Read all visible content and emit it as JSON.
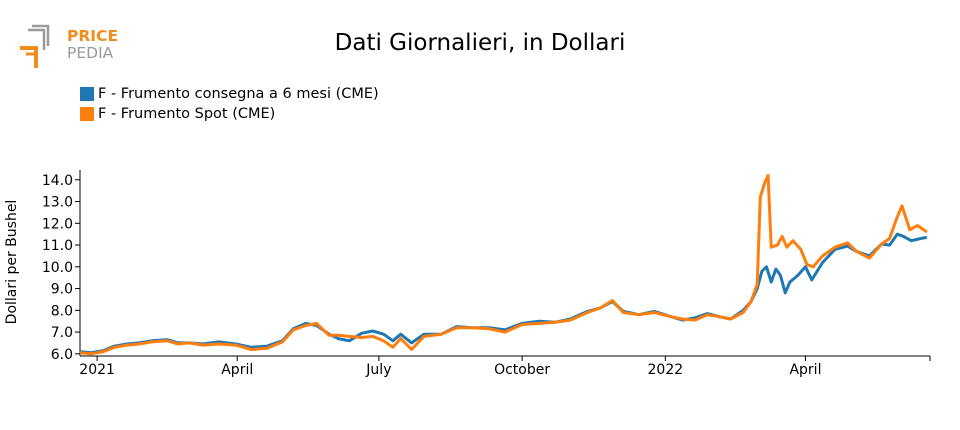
{
  "logo": {
    "word1": "PRICE",
    "word2": "PEDIA",
    "colors": {
      "orange": "#F28C1E",
      "gray": "#9A9A9A"
    }
  },
  "chart_data": {
    "type": "line",
    "title": "Dati Giornalieri, in Dollari",
    "ylabel": "Dollari per Bushel",
    "xlabel": "",
    "ylim": [
      5.9,
      14.45
    ],
    "yticks": [
      "6.0",
      "7.0",
      "8.0",
      "9.0",
      "10.0",
      "11.0",
      "12.0",
      "13.0",
      "14.0"
    ],
    "xlim": [
      "2020-12-21",
      "2022-06-20"
    ],
    "xticks": [
      {
        "date": "2021-01-01",
        "label": "2021"
      },
      {
        "date": "2021-04-01",
        "label": "April"
      },
      {
        "date": "2021-07-01",
        "label": "July"
      },
      {
        "date": "2021-10-01",
        "label": "October"
      },
      {
        "date": "2022-01-01",
        "label": "2022"
      },
      {
        "date": "2022-04-01",
        "label": "April"
      }
    ],
    "legend_position": "top-left",
    "series": [
      {
        "name": "F - Frumento consegna a 6 mesi (CME)",
        "color": "#1F77B4",
        "points": [
          [
            "2020-12-21",
            6.1
          ],
          [
            "2020-12-28",
            6.05
          ],
          [
            "2021-01-05",
            6.15
          ],
          [
            "2021-01-12",
            6.35
          ],
          [
            "2021-01-20",
            6.45
          ],
          [
            "2021-01-28",
            6.5
          ],
          [
            "2021-02-05",
            6.6
          ],
          [
            "2021-02-15",
            6.65
          ],
          [
            "2021-02-22",
            6.5
          ],
          [
            "2021-03-01",
            6.5
          ],
          [
            "2021-03-10",
            6.45
          ],
          [
            "2021-03-20",
            6.55
          ],
          [
            "2021-03-31",
            6.45
          ],
          [
            "2021-04-10",
            6.3
          ],
          [
            "2021-04-20",
            6.35
          ],
          [
            "2021-04-30",
            6.6
          ],
          [
            "2021-05-07",
            7.15
          ],
          [
            "2021-05-15",
            7.4
          ],
          [
            "2021-05-22",
            7.3
          ],
          [
            "2021-05-30",
            6.9
          ],
          [
            "2021-06-05",
            6.7
          ],
          [
            "2021-06-12",
            6.6
          ],
          [
            "2021-06-20",
            6.95
          ],
          [
            "2021-06-27",
            7.05
          ],
          [
            "2021-07-04",
            6.9
          ],
          [
            "2021-07-10",
            6.6
          ],
          [
            "2021-07-15",
            6.9
          ],
          [
            "2021-07-22",
            6.5
          ],
          [
            "2021-07-30",
            6.9
          ],
          [
            "2021-08-10",
            6.9
          ],
          [
            "2021-08-20",
            7.25
          ],
          [
            "2021-08-30",
            7.2
          ],
          [
            "2021-09-10",
            7.2
          ],
          [
            "2021-09-20",
            7.1
          ],
          [
            "2021-10-01",
            7.4
          ],
          [
            "2021-10-12",
            7.5
          ],
          [
            "2021-10-22",
            7.45
          ],
          [
            "2021-11-01",
            7.6
          ],
          [
            "2021-11-12",
            7.95
          ],
          [
            "2021-11-20",
            8.1
          ],
          [
            "2021-11-28",
            8.4
          ],
          [
            "2021-12-05",
            7.95
          ],
          [
            "2021-12-15",
            7.8
          ],
          [
            "2021-12-25",
            7.95
          ],
          [
            "2022-01-05",
            7.7
          ],
          [
            "2022-01-12",
            7.55
          ],
          [
            "2022-01-20",
            7.65
          ],
          [
            "2022-01-28",
            7.85
          ],
          [
            "2022-02-05",
            7.7
          ],
          [
            "2022-02-12",
            7.6
          ],
          [
            "2022-02-20",
            8.0
          ],
          [
            "2022-02-25",
            8.4
          ],
          [
            "2022-03-01",
            9.0
          ],
          [
            "2022-03-04",
            9.8
          ],
          [
            "2022-03-07",
            10.0
          ],
          [
            "2022-03-10",
            9.3
          ],
          [
            "2022-03-13",
            9.9
          ],
          [
            "2022-03-16",
            9.6
          ],
          [
            "2022-03-19",
            8.8
          ],
          [
            "2022-03-22",
            9.3
          ],
          [
            "2022-03-27",
            9.6
          ],
          [
            "2022-04-01",
            10.0
          ],
          [
            "2022-04-05",
            9.4
          ],
          [
            "2022-04-12",
            10.2
          ],
          [
            "2022-04-20",
            10.8
          ],
          [
            "2022-04-28",
            10.95
          ],
          [
            "2022-05-04",
            10.7
          ],
          [
            "2022-05-12",
            10.5
          ],
          [
            "2022-05-20",
            11.05
          ],
          [
            "2022-05-25",
            11.0
          ],
          [
            "2022-05-30",
            11.5
          ],
          [
            "2022-06-03",
            11.4
          ],
          [
            "2022-06-08",
            11.2
          ],
          [
            "2022-06-14",
            11.3
          ],
          [
            "2022-06-18",
            11.35
          ]
        ]
      },
      {
        "name": "F - Frumento Spot (CME)",
        "color": "#FF7F0E",
        "points": [
          [
            "2020-12-21",
            6.05
          ],
          [
            "2020-12-28",
            6.0
          ],
          [
            "2021-01-05",
            6.1
          ],
          [
            "2021-01-12",
            6.3
          ],
          [
            "2021-01-20",
            6.4
          ],
          [
            "2021-01-28",
            6.45
          ],
          [
            "2021-02-05",
            6.55
          ],
          [
            "2021-02-15",
            6.6
          ],
          [
            "2021-02-22",
            6.45
          ],
          [
            "2021-03-01",
            6.5
          ],
          [
            "2021-03-10",
            6.4
          ],
          [
            "2021-03-20",
            6.45
          ],
          [
            "2021-03-31",
            6.4
          ],
          [
            "2021-04-10",
            6.2
          ],
          [
            "2021-04-20",
            6.25
          ],
          [
            "2021-04-30",
            6.55
          ],
          [
            "2021-05-07",
            7.1
          ],
          [
            "2021-05-15",
            7.3
          ],
          [
            "2021-05-22",
            7.4
          ],
          [
            "2021-05-30",
            6.85
          ],
          [
            "2021-06-05",
            6.85
          ],
          [
            "2021-06-12",
            6.8
          ],
          [
            "2021-06-20",
            6.75
          ],
          [
            "2021-06-27",
            6.8
          ],
          [
            "2021-07-04",
            6.6
          ],
          [
            "2021-07-10",
            6.3
          ],
          [
            "2021-07-15",
            6.7
          ],
          [
            "2021-07-22",
            6.2
          ],
          [
            "2021-07-30",
            6.8
          ],
          [
            "2021-08-10",
            6.9
          ],
          [
            "2021-08-20",
            7.2
          ],
          [
            "2021-08-30",
            7.2
          ],
          [
            "2021-09-10",
            7.15
          ],
          [
            "2021-09-20",
            7.0
          ],
          [
            "2021-10-01",
            7.35
          ],
          [
            "2021-10-12",
            7.4
          ],
          [
            "2021-10-22",
            7.45
          ],
          [
            "2021-11-01",
            7.55
          ],
          [
            "2021-11-12",
            7.9
          ],
          [
            "2021-11-20",
            8.1
          ],
          [
            "2021-11-28",
            8.45
          ],
          [
            "2021-12-05",
            7.9
          ],
          [
            "2021-12-15",
            7.8
          ],
          [
            "2021-12-25",
            7.9
          ],
          [
            "2022-01-05",
            7.7
          ],
          [
            "2022-01-12",
            7.6
          ],
          [
            "2022-01-20",
            7.55
          ],
          [
            "2022-01-28",
            7.8
          ],
          [
            "2022-02-05",
            7.7
          ],
          [
            "2022-02-12",
            7.6
          ],
          [
            "2022-02-20",
            7.9
          ],
          [
            "2022-02-25",
            8.4
          ],
          [
            "2022-03-01",
            9.2
          ],
          [
            "2022-03-03",
            13.2
          ],
          [
            "2022-03-06",
            13.9
          ],
          [
            "2022-03-08",
            14.2
          ],
          [
            "2022-03-10",
            10.9
          ],
          [
            "2022-03-14",
            11.0
          ],
          [
            "2022-03-17",
            11.4
          ],
          [
            "2022-03-20",
            10.9
          ],
          [
            "2022-03-24",
            11.2
          ],
          [
            "2022-03-29",
            10.8
          ],
          [
            "2022-04-02",
            10.1
          ],
          [
            "2022-04-06",
            10.0
          ],
          [
            "2022-04-12",
            10.5
          ],
          [
            "2022-04-20",
            10.9
          ],
          [
            "2022-04-28",
            11.1
          ],
          [
            "2022-05-04",
            10.7
          ],
          [
            "2022-05-12",
            10.4
          ],
          [
            "2022-05-20",
            11.05
          ],
          [
            "2022-05-25",
            11.3
          ],
          [
            "2022-05-30",
            12.3
          ],
          [
            "2022-06-02",
            12.8
          ],
          [
            "2022-06-07",
            11.7
          ],
          [
            "2022-06-12",
            11.9
          ],
          [
            "2022-06-18",
            11.6
          ]
        ]
      }
    ]
  }
}
